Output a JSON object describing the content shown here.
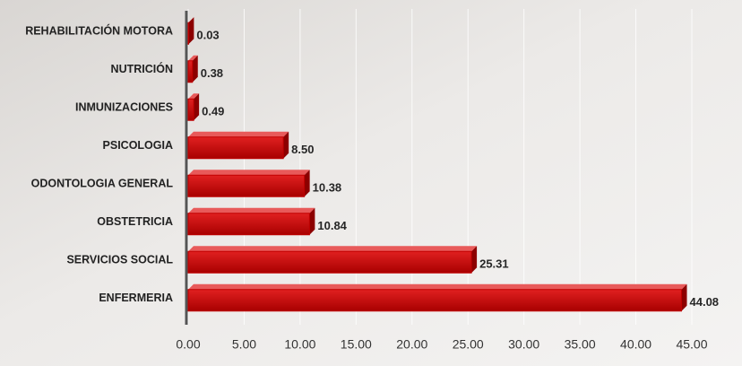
{
  "chart_data": {
    "type": "bar",
    "orientation": "horizontal",
    "categories": [
      "REHABILITACIÓN MOTORA",
      "NUTRICIÓN",
      "INMUNIZACIONES",
      "PSICOLOGIA",
      "ODONTOLOGIA GENERAL",
      "OBSTETRICIA",
      "SERVICIOS SOCIAL",
      "ENFERMERIA"
    ],
    "values": [
      0.03,
      0.38,
      0.49,
      8.5,
      10.38,
      10.84,
      25.31,
      44.08
    ],
    "value_labels": [
      "0.03",
      "0.38",
      "0.49",
      "8.50",
      "10.38",
      "10.84",
      "25.31",
      "44.08"
    ],
    "color": "#c00000",
    "xlim": [
      0,
      45
    ],
    "xticks": [
      {
        "value": 0,
        "label": "0.00"
      },
      {
        "value": 5,
        "label": "5.00"
      },
      {
        "value": 10,
        "label": "10.00"
      },
      {
        "value": 15,
        "label": "15.00"
      },
      {
        "value": 20,
        "label": "20.00"
      },
      {
        "value": 25,
        "label": "25.00"
      },
      {
        "value": 30,
        "label": "30.00"
      },
      {
        "value": 35,
        "label": "35.00"
      },
      {
        "value": 40,
        "label": "40.00"
      },
      {
        "value": 45,
        "label": "45.00"
      }
    ],
    "grid": true
  }
}
